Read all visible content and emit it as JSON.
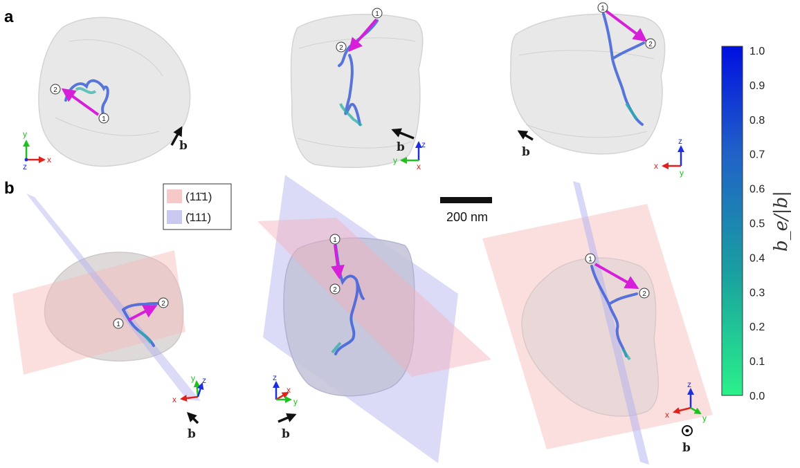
{
  "panels": [
    {
      "letter": "a"
    },
    {
      "letter": "b"
    }
  ],
  "legend": {
    "entries": [
      {
        "label": "(11̄1)",
        "color": "#f7c8c8"
      },
      {
        "label": "(̄111)",
        "color": "#c9c8f0"
      }
    ]
  },
  "scale_bar": {
    "label": "200 nm"
  },
  "colorbar": {
    "label": "b_e/|b|",
    "ticks": [
      "1.0",
      "0.9",
      "0.8",
      "0.7",
      "0.6",
      "0.5",
      "0.4",
      "0.3",
      "0.2",
      "0.1",
      "0.0"
    ],
    "range": [
      0,
      1
    ],
    "color_low": "#2af08a",
    "color_high": "#0010e0"
  },
  "burgers_label": "b",
  "markers": [
    "1",
    "2"
  ],
  "triads": [
    {
      "axes": [
        "y",
        "x",
        "z"
      ],
      "view": "z-out"
    },
    {
      "axes": [
        "z",
        "y",
        "x"
      ],
      "view": "x-in"
    },
    {
      "axes": [
        "z",
        "x",
        "y"
      ],
      "view": "y-in"
    },
    {
      "axes": [
        "y",
        "z",
        "x"
      ],
      "view": "oblique"
    },
    {
      "axes": [
        "z",
        "x",
        "y"
      ],
      "view": "oblique"
    },
    {
      "axes": [
        "z",
        "x",
        "y"
      ],
      "view": "oblique"
    }
  ],
  "colors": {
    "grain": "#e4e4e4",
    "dislocation": "#3d5fd8",
    "arrow": "#d61fd8",
    "axis_x": "#e0201a",
    "axis_y": "#1fc01f",
    "axis_z": "#1f2fe0"
  }
}
